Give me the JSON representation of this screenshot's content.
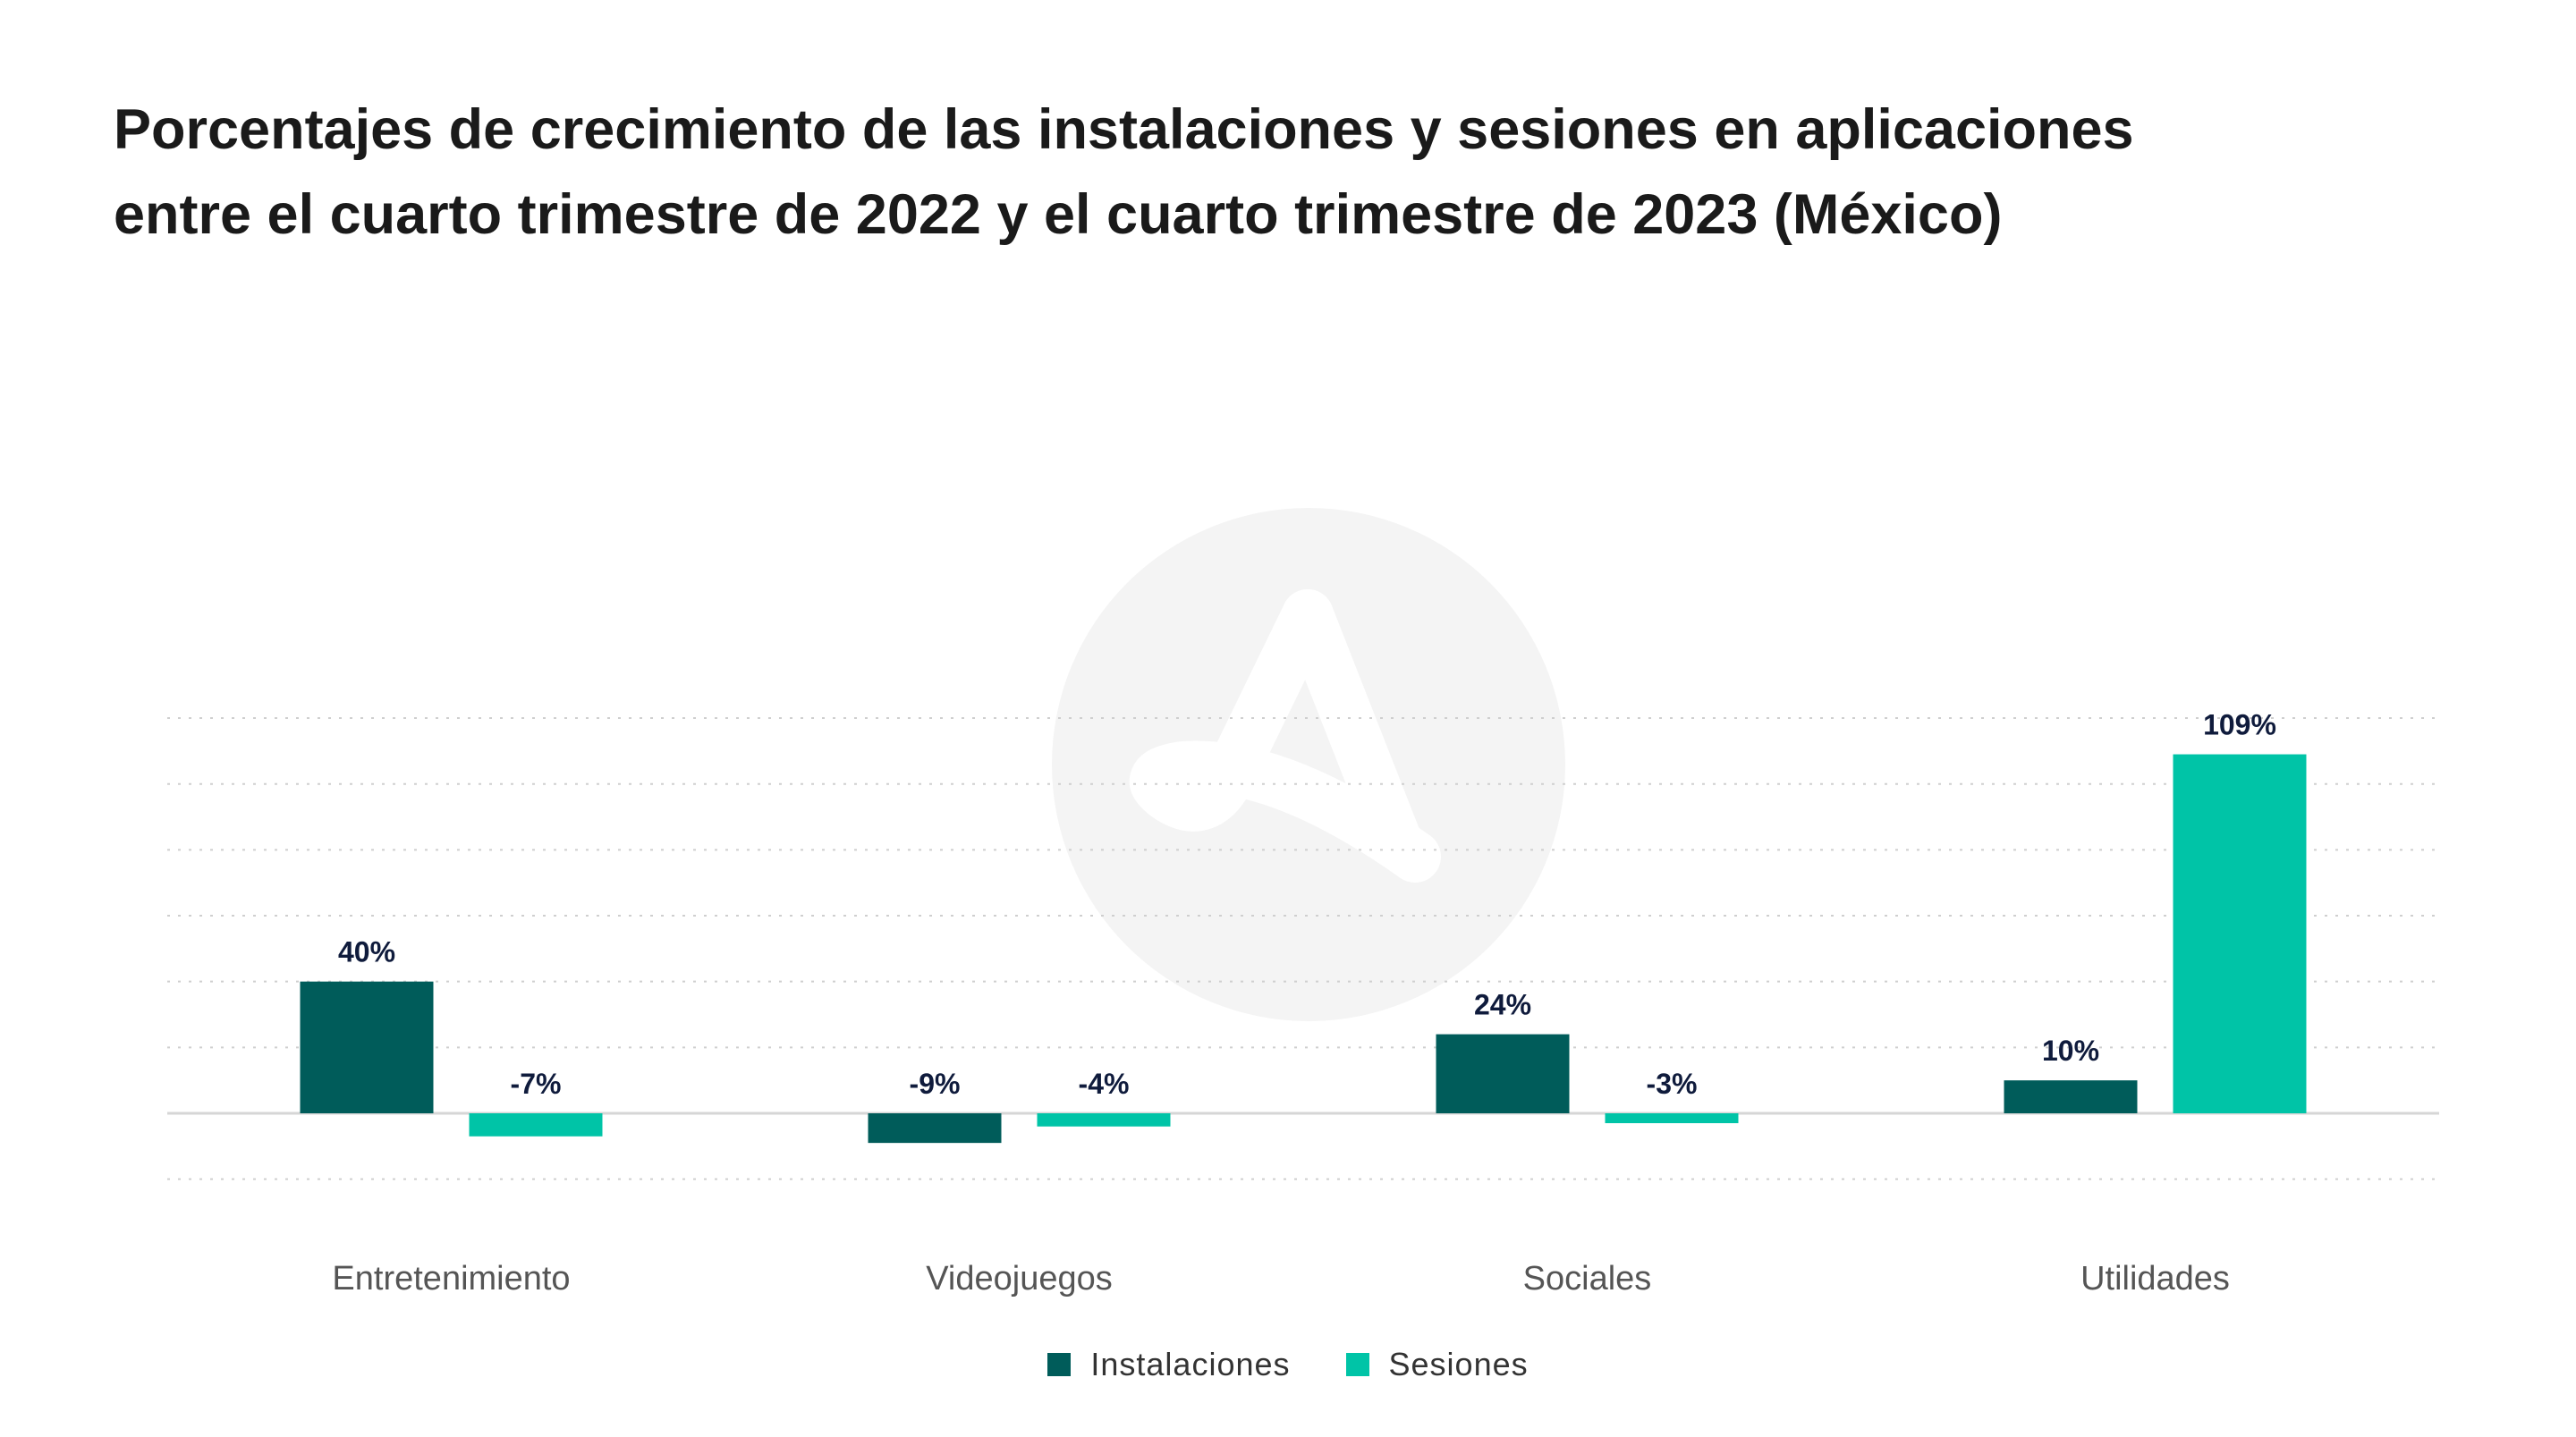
{
  "chart_data": {
    "type": "bar",
    "title": [
      "Porcentajes de crecimiento de las instalaciones y sesiones en aplicaciones",
      "entre el cuarto trimestre de 2022 y el cuarto trimestre de 2023 (México)"
    ],
    "categories": [
      "Entretenimiento",
      "Videojuegos",
      "Sociales",
      "Utilidades"
    ],
    "series": [
      {
        "name": "Instalaciones",
        "values": [
          40,
          -9,
          24,
          10
        ],
        "labels": [
          "40%",
          "-9%",
          "24%",
          "10%"
        ],
        "color": "#005c5a"
      },
      {
        "name": "Sesiones",
        "values": [
          -7,
          -4,
          -3,
          109
        ],
        "labels": [
          "-7%",
          "-4%",
          "-3%",
          "109%"
        ],
        "color": "#00c4a7"
      }
    ],
    "ylim": [
      -20,
      120
    ],
    "grid": true,
    "legend_position": "bottom"
  }
}
